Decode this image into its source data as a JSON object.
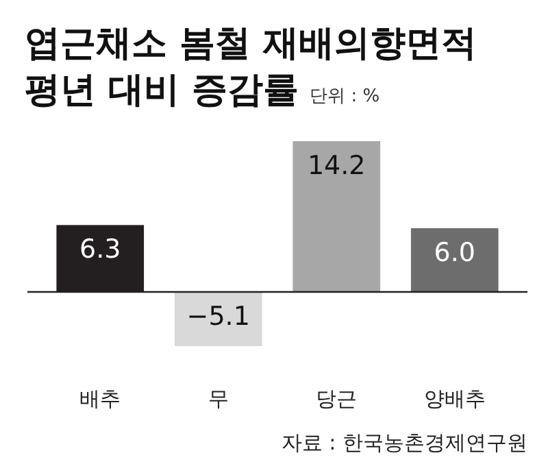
{
  "chart_data": {
    "type": "bar",
    "title": "엽근채소 봄철 재배의향면적\n평년 대비 증감률",
    "subtitle": "단위 : %",
    "categories": [
      "배추",
      "무",
      "당근",
      "양배추"
    ],
    "values": [
      6.3,
      -5.1,
      14.2,
      6.0
    ],
    "colors": [
      "#231f20",
      "#d9d9d9",
      "#a7a7a7",
      "#6d6d6d"
    ],
    "value_labels": [
      "6.3",
      "−5.1",
      "14.2",
      "6.0"
    ],
    "annotations": [
      "자료 : 한국농촌경제연구원"
    ]
  }
}
